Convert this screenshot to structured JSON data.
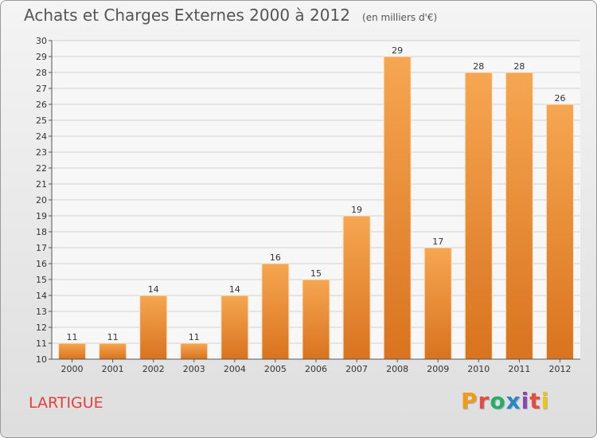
{
  "header": {
    "title": "Achats et Charges Externes 2000 à 2012",
    "subtitle": "(en milliers d'€)"
  },
  "footer": {
    "town": "LARTIGUE",
    "brand": "Proxiti",
    "brand_colors": [
      "#f39c12",
      "#e74c3c",
      "#27ae60",
      "#2e86c1",
      "#8e44ad",
      "#e74c3c",
      "#f1c40f"
    ]
  },
  "colors": {
    "bar_top": "#f6a651",
    "bar_bottom": "#d9731f",
    "grid": "#d0d0d0",
    "axis": "#555555"
  },
  "chart_data": {
    "type": "bar",
    "title": "Achats et Charges Externes 2000 à 2012",
    "subtitle": "(en milliers d'€)",
    "categories": [
      "2000",
      "2001",
      "2002",
      "2003",
      "2004",
      "2005",
      "2006",
      "2007",
      "2008",
      "2009",
      "2010",
      "2011",
      "2012"
    ],
    "values": [
      11,
      11,
      14,
      11,
      14,
      16,
      15,
      19,
      29,
      17,
      28,
      28,
      26
    ],
    "ylim": [
      10,
      30
    ],
    "ytick_step": 1,
    "grid": true,
    "data_labels": true
  }
}
